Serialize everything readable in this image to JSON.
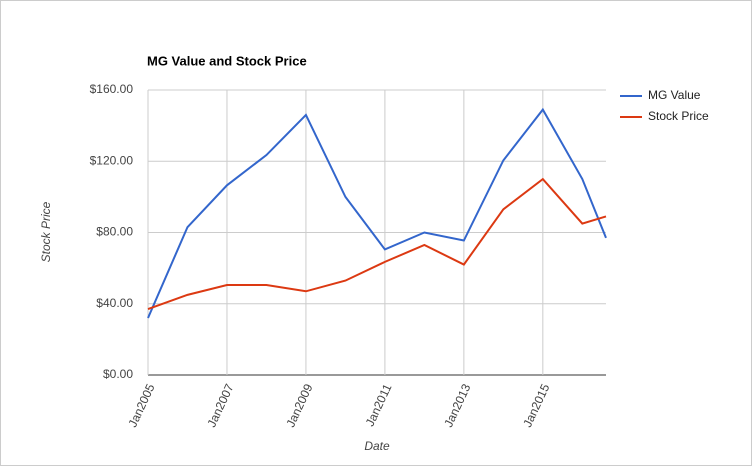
{
  "chart_data": {
    "type": "line",
    "title": "MG Value and Stock Price",
    "x_label": "Date",
    "y_label": "Stock Price",
    "x": [
      2005,
      2006,
      2007,
      2008,
      2009,
      2010,
      2011,
      2012,
      2013,
      2014,
      2015,
      2016,
      2016.6
    ],
    "series": [
      {
        "name": "MG Value",
        "color": "#3366cc",
        "values": [
          32,
          83,
          106.5,
          123.5,
          146,
          100,
          70.5,
          80,
          75.5,
          120.5,
          149,
          110,
          77
        ]
      },
      {
        "name": "Stock Price",
        "color": "#dc3912",
        "values": [
          37,
          45,
          50.5,
          50.5,
          47,
          53,
          63.5,
          73,
          62,
          93,
          110,
          85,
          89
        ]
      }
    ],
    "xlim": [
      2005,
      2016.6
    ],
    "xticks": [
      {
        "value": 2005,
        "label": "Jan2005"
      },
      {
        "value": 2007,
        "label": "Jan2007"
      },
      {
        "value": 2009,
        "label": "Jan2009"
      },
      {
        "value": 2011,
        "label": "Jan2011"
      },
      {
        "value": 2013,
        "label": "Jan2013"
      },
      {
        "value": 2015,
        "label": "Jan2015"
      }
    ],
    "ylim": [
      0,
      160
    ],
    "yticks": [
      {
        "value": 0,
        "label": "$0.00"
      },
      {
        "value": 40,
        "label": "$40.00"
      },
      {
        "value": 80,
        "label": "$80.00"
      },
      {
        "value": 120,
        "label": "$120.00"
      },
      {
        "value": 160,
        "label": "$160.00"
      }
    ],
    "grid": true,
    "legend": "right"
  }
}
